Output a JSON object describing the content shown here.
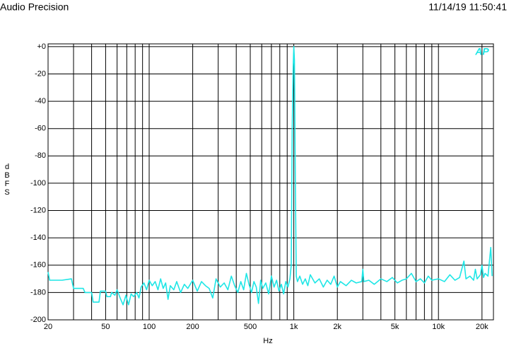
{
  "chart_data": {
    "type": "line",
    "header_left": "Audio Precision",
    "header_right": "11/14/19 11:50:41",
    "logo_text": "AP",
    "x_label": "Hz",
    "y_label": "dBFS",
    "log_x": true,
    "grid": true,
    "xlim": [
      20,
      24000
    ],
    "ylim": [
      -200,
      2
    ],
    "xticks": [
      20,
      50,
      100,
      200,
      500,
      {
        "value": 1000,
        "label": "1k"
      },
      {
        "value": 2000,
        "label": "2k"
      },
      {
        "value": 5000,
        "label": "5k"
      },
      {
        "value": 10000,
        "label": "10k"
      },
      {
        "value": 20000,
        "label": "20k"
      }
    ],
    "xgrid": [
      30,
      40,
      60,
      70,
      80,
      90,
      300,
      400,
      600,
      700,
      800,
      900,
      3000,
      4000,
      6000,
      7000,
      8000,
      9000
    ],
    "yticks": [
      {
        "value": 0,
        "label": "+0"
      },
      -20,
      -40,
      -60,
      -80,
      -100,
      -120,
      -140,
      -160,
      -180,
      -200
    ],
    "x": [
      20,
      20.5,
      25,
      29,
      30,
      35,
      36,
      40,
      41,
      45,
      46,
      50,
      51,
      54,
      55,
      58,
      60,
      63,
      66,
      69,
      72,
      75,
      78,
      82,
      85,
      88,
      92,
      96,
      100,
      105,
      110,
      115,
      120,
      125,
      130,
      135,
      140,
      148,
      155,
      165,
      175,
      185,
      200,
      215,
      230,
      245,
      260,
      275,
      290,
      310,
      330,
      350,
      370,
      390,
      410,
      430,
      450,
      470,
      490,
      510,
      530,
      550,
      570,
      590,
      610,
      640,
      670,
      700,
      730,
      760,
      790,
      820,
      850,
      880,
      910,
      940,
      960,
      975,
      990,
      1000,
      1010,
      1025,
      1040,
      1060,
      1100,
      1150,
      1200,
      1250,
      1300,
      1400,
      1500,
      1600,
      1700,
      1800,
      1900,
      2000,
      2100,
      2300,
      2500,
      2700,
      2950,
      3000,
      3050,
      3300,
      3600,
      4000,
      4400,
      4800,
      5200,
      5600,
      6000,
      6500,
      7000,
      7500,
      8000,
      8500,
      9000,
      10000,
      11000,
      12000,
      13000,
      14000,
      15000,
      15500,
      16500,
      17500,
      18000,
      18500,
      19500,
      20000,
      20500,
      21000,
      22000,
      23000,
      23500
    ],
    "series": [
      {
        "color": "#1ee6e6",
        "values": [
          -165,
          -171,
          -171,
          -170,
          -177,
          -177,
          -180,
          -180,
          -187,
          -187,
          -179,
          -179,
          -183,
          -183,
          -180,
          -182,
          -178,
          -184,
          -189,
          -182,
          -189,
          -181,
          -183,
          -180,
          -184,
          -176,
          -173,
          -178,
          -171,
          -175,
          -172,
          -178,
          -170,
          -177,
          -173,
          -185,
          -175,
          -178,
          -172,
          -180,
          -174,
          -177,
          -171,
          -179,
          -172,
          -175,
          -177,
          -184,
          -170,
          -176,
          -173,
          -178,
          -168,
          -175,
          -180,
          -172,
          -178,
          -166,
          -174,
          -180,
          -172,
          -176,
          -188,
          -171,
          -177,
          -173,
          -181,
          -168,
          -176,
          -171,
          -179,
          -174,
          -181,
          -172,
          -176,
          -170,
          -160,
          -60,
          -15,
          0,
          -10,
          -100,
          -168,
          -172,
          -168,
          -174,
          -170,
          -175,
          -167,
          -173,
          -170,
          -176,
          -171,
          -174,
          -168,
          -176,
          -172,
          -175,
          -171,
          -173,
          -172,
          -163,
          -172,
          -171,
          -174,
          -170,
          -172,
          -169,
          -173,
          -171,
          -170,
          -166,
          -172,
          -170,
          -173,
          -168,
          -171,
          -170,
          -172,
          -167,
          -171,
          -169,
          -157,
          -170,
          -168,
          -171,
          -163,
          -170,
          -167,
          -160,
          -169,
          -166,
          -168,
          -147,
          -168
        ]
      }
    ]
  }
}
